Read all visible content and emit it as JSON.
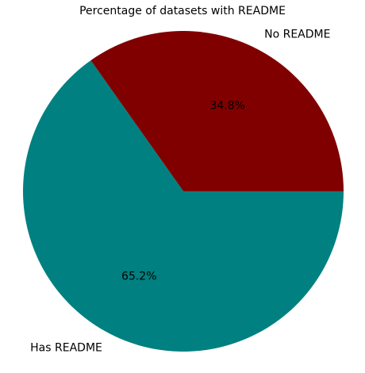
{
  "chart_data": {
    "type": "pie",
    "title": "Percentage of datasets with README",
    "slices": [
      {
        "label": "No README",
        "value": 34.8,
        "pct_label": "34.8%",
        "color": "#800000"
      },
      {
        "label": "Has README",
        "value": 65.2,
        "pct_label": "65.2%",
        "color": "#008080"
      }
    ],
    "start_angle_deg": 0,
    "direction": "counterclockwise"
  }
}
